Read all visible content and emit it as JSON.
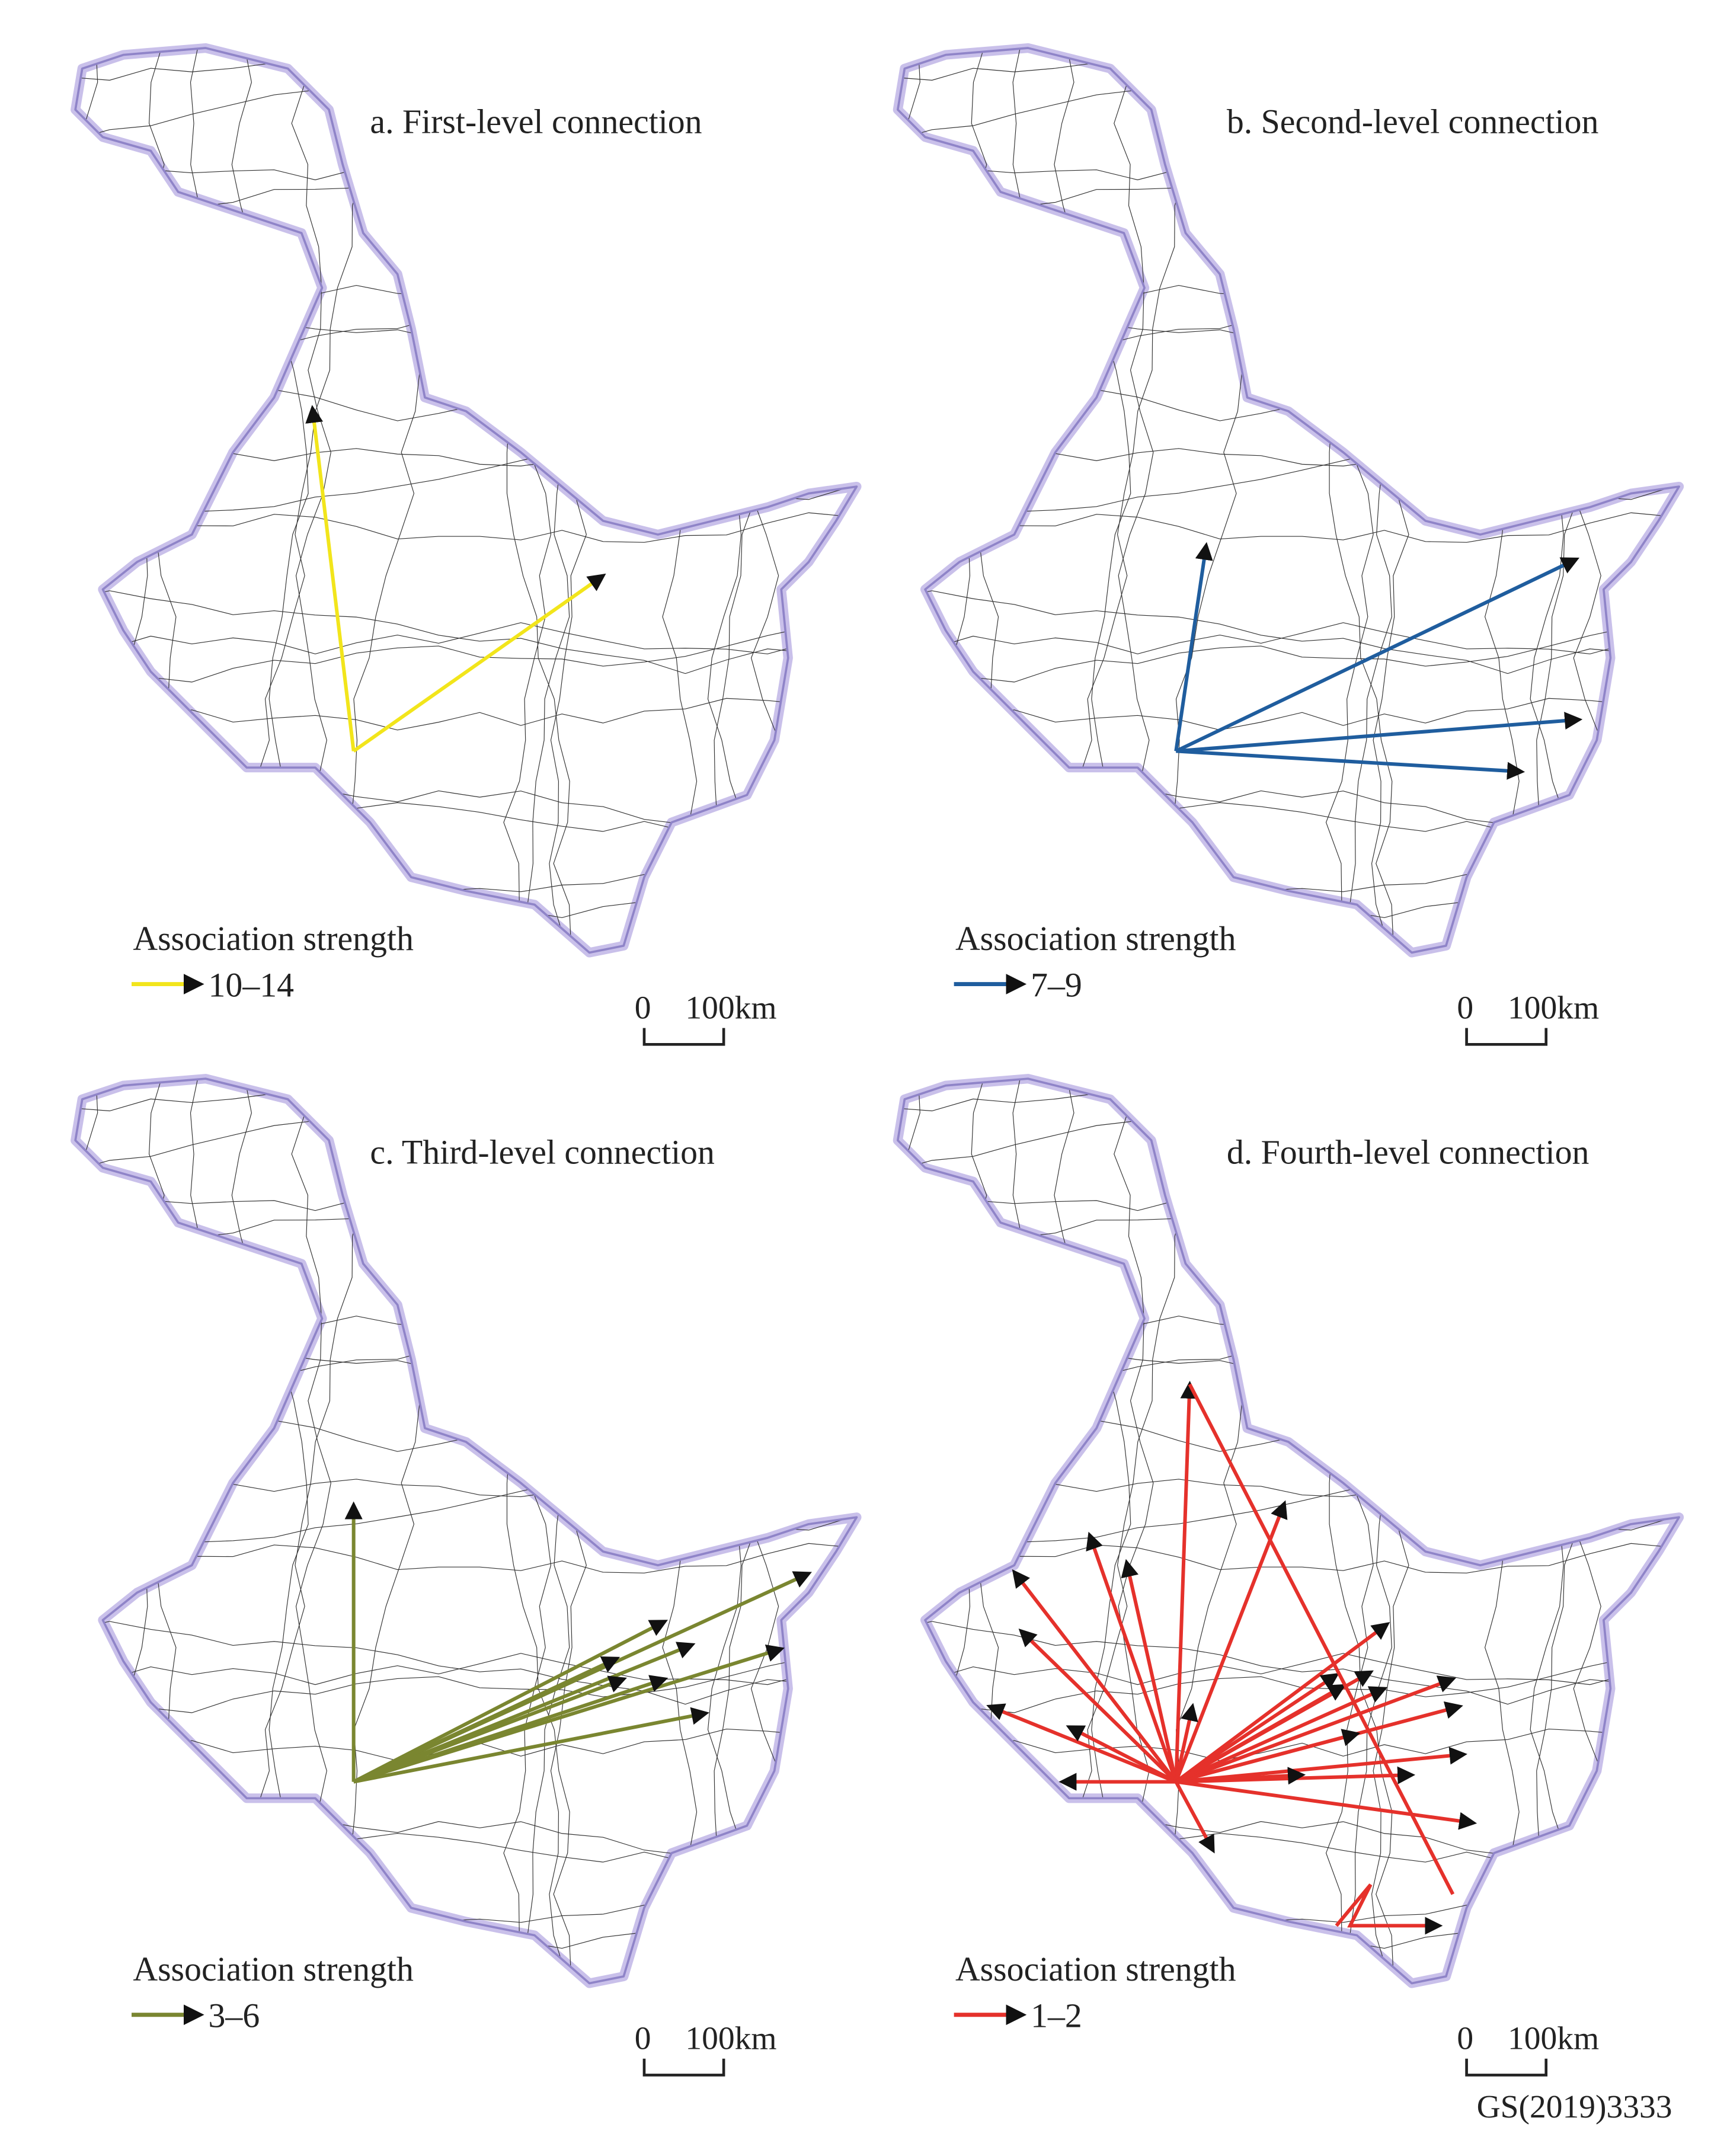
{
  "panels": [
    {
      "title": "a. First-level connection",
      "legend_title": "Association strength",
      "legend_range": "10–14",
      "scale_zero": "0",
      "scale_label": "100km"
    },
    {
      "title": "b. Second-level connection",
      "legend_title": "Association strength",
      "legend_range": "7–9",
      "scale_zero": "0",
      "scale_label": "100km"
    },
    {
      "title": "c. Third-level connection",
      "legend_title": "Association strength",
      "legend_range": "3–6",
      "scale_zero": "0",
      "scale_label": "100km"
    },
    {
      "title": "d. Fourth-level connection",
      "legend_title": "Association strength",
      "legend_range": "1–2",
      "scale_zero": "0",
      "scale_label": "100km"
    }
  ],
  "footer": "GS(2019)3333"
}
